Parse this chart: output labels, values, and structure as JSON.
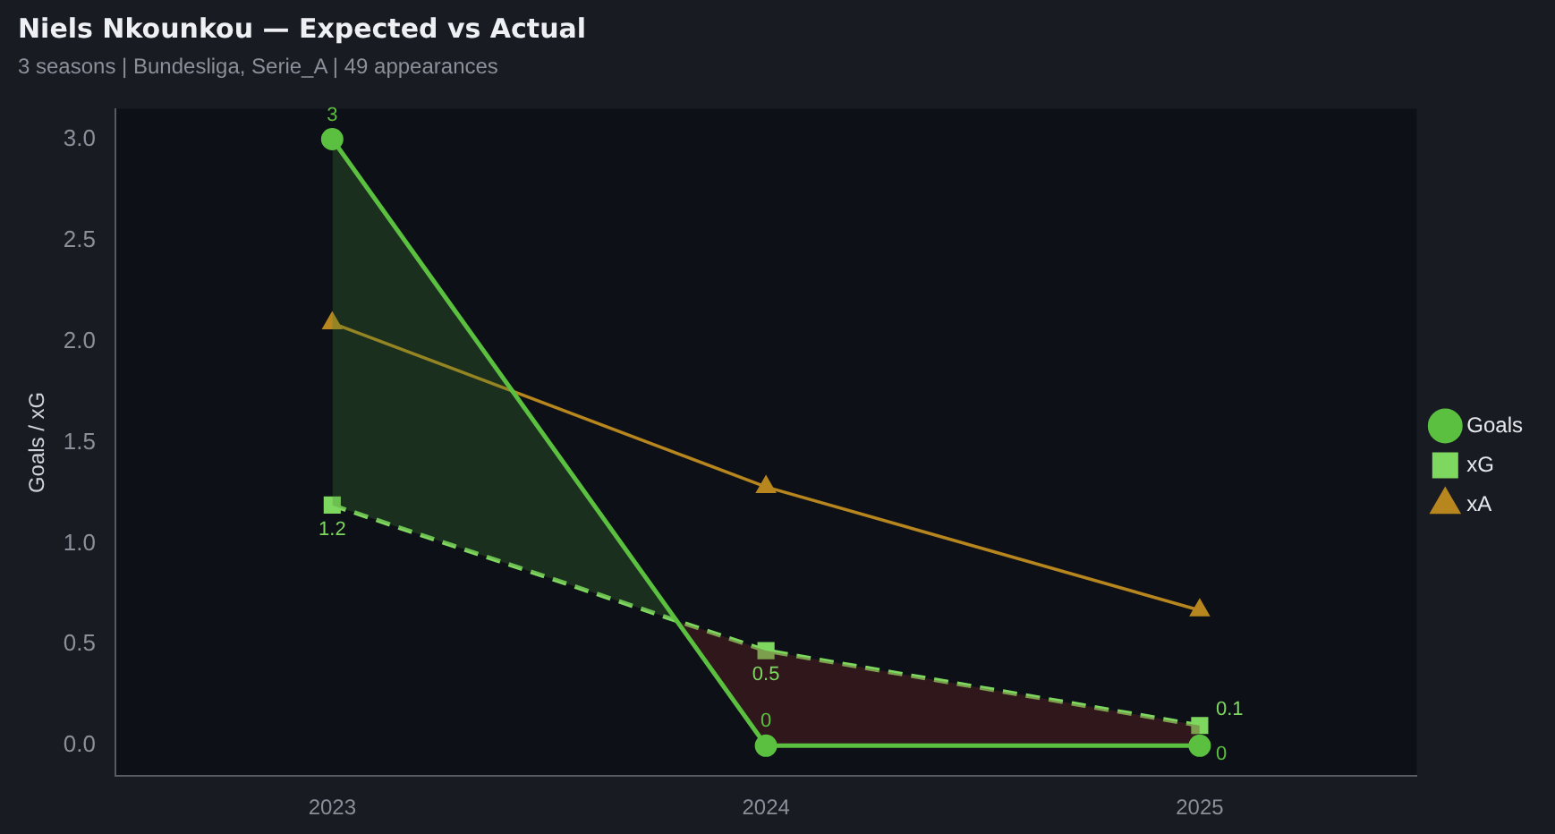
{
  "chart_data": {
    "type": "line",
    "title": "Niels Nkounkou — Expected vs Actual",
    "subtitle": "3 seasons | Bundesliga, Serie_A | 49 appearances",
    "ylabel": "Goals / xG",
    "categories": [
      "2023",
      "2024",
      "2025"
    ],
    "series": [
      {
        "name": "Goals",
        "color": "#5bbf3f",
        "values": [
          3,
          0,
          0
        ],
        "marker": "circle",
        "line_style": "solid",
        "value_labels": [
          "3",
          "0",
          "0"
        ]
      },
      {
        "name": "xG",
        "color": "#7ed85f",
        "values": [
          1.19,
          0.47,
          0.1
        ],
        "marker": "square",
        "line_style": "dashed",
        "value_labels": [
          "1.2",
          "0.5",
          "0.1"
        ]
      },
      {
        "name": "xA",
        "color": "#b8861e",
        "values": [
          2.09,
          1.28,
          0.67
        ],
        "marker": "triangle",
        "line_style": "solid"
      }
    ],
    "ylim": [
      -0.15,
      3.15
    ],
    "yticks": [
      {
        "value": 0,
        "label": "0.0"
      },
      0.5,
      {
        "value": 1,
        "label": "1.0"
      },
      1.5,
      {
        "value": 2,
        "label": "2.0"
      },
      2.5,
      {
        "value": 3,
        "label": "3.0"
      }
    ],
    "grid": false,
    "legend": "right"
  }
}
